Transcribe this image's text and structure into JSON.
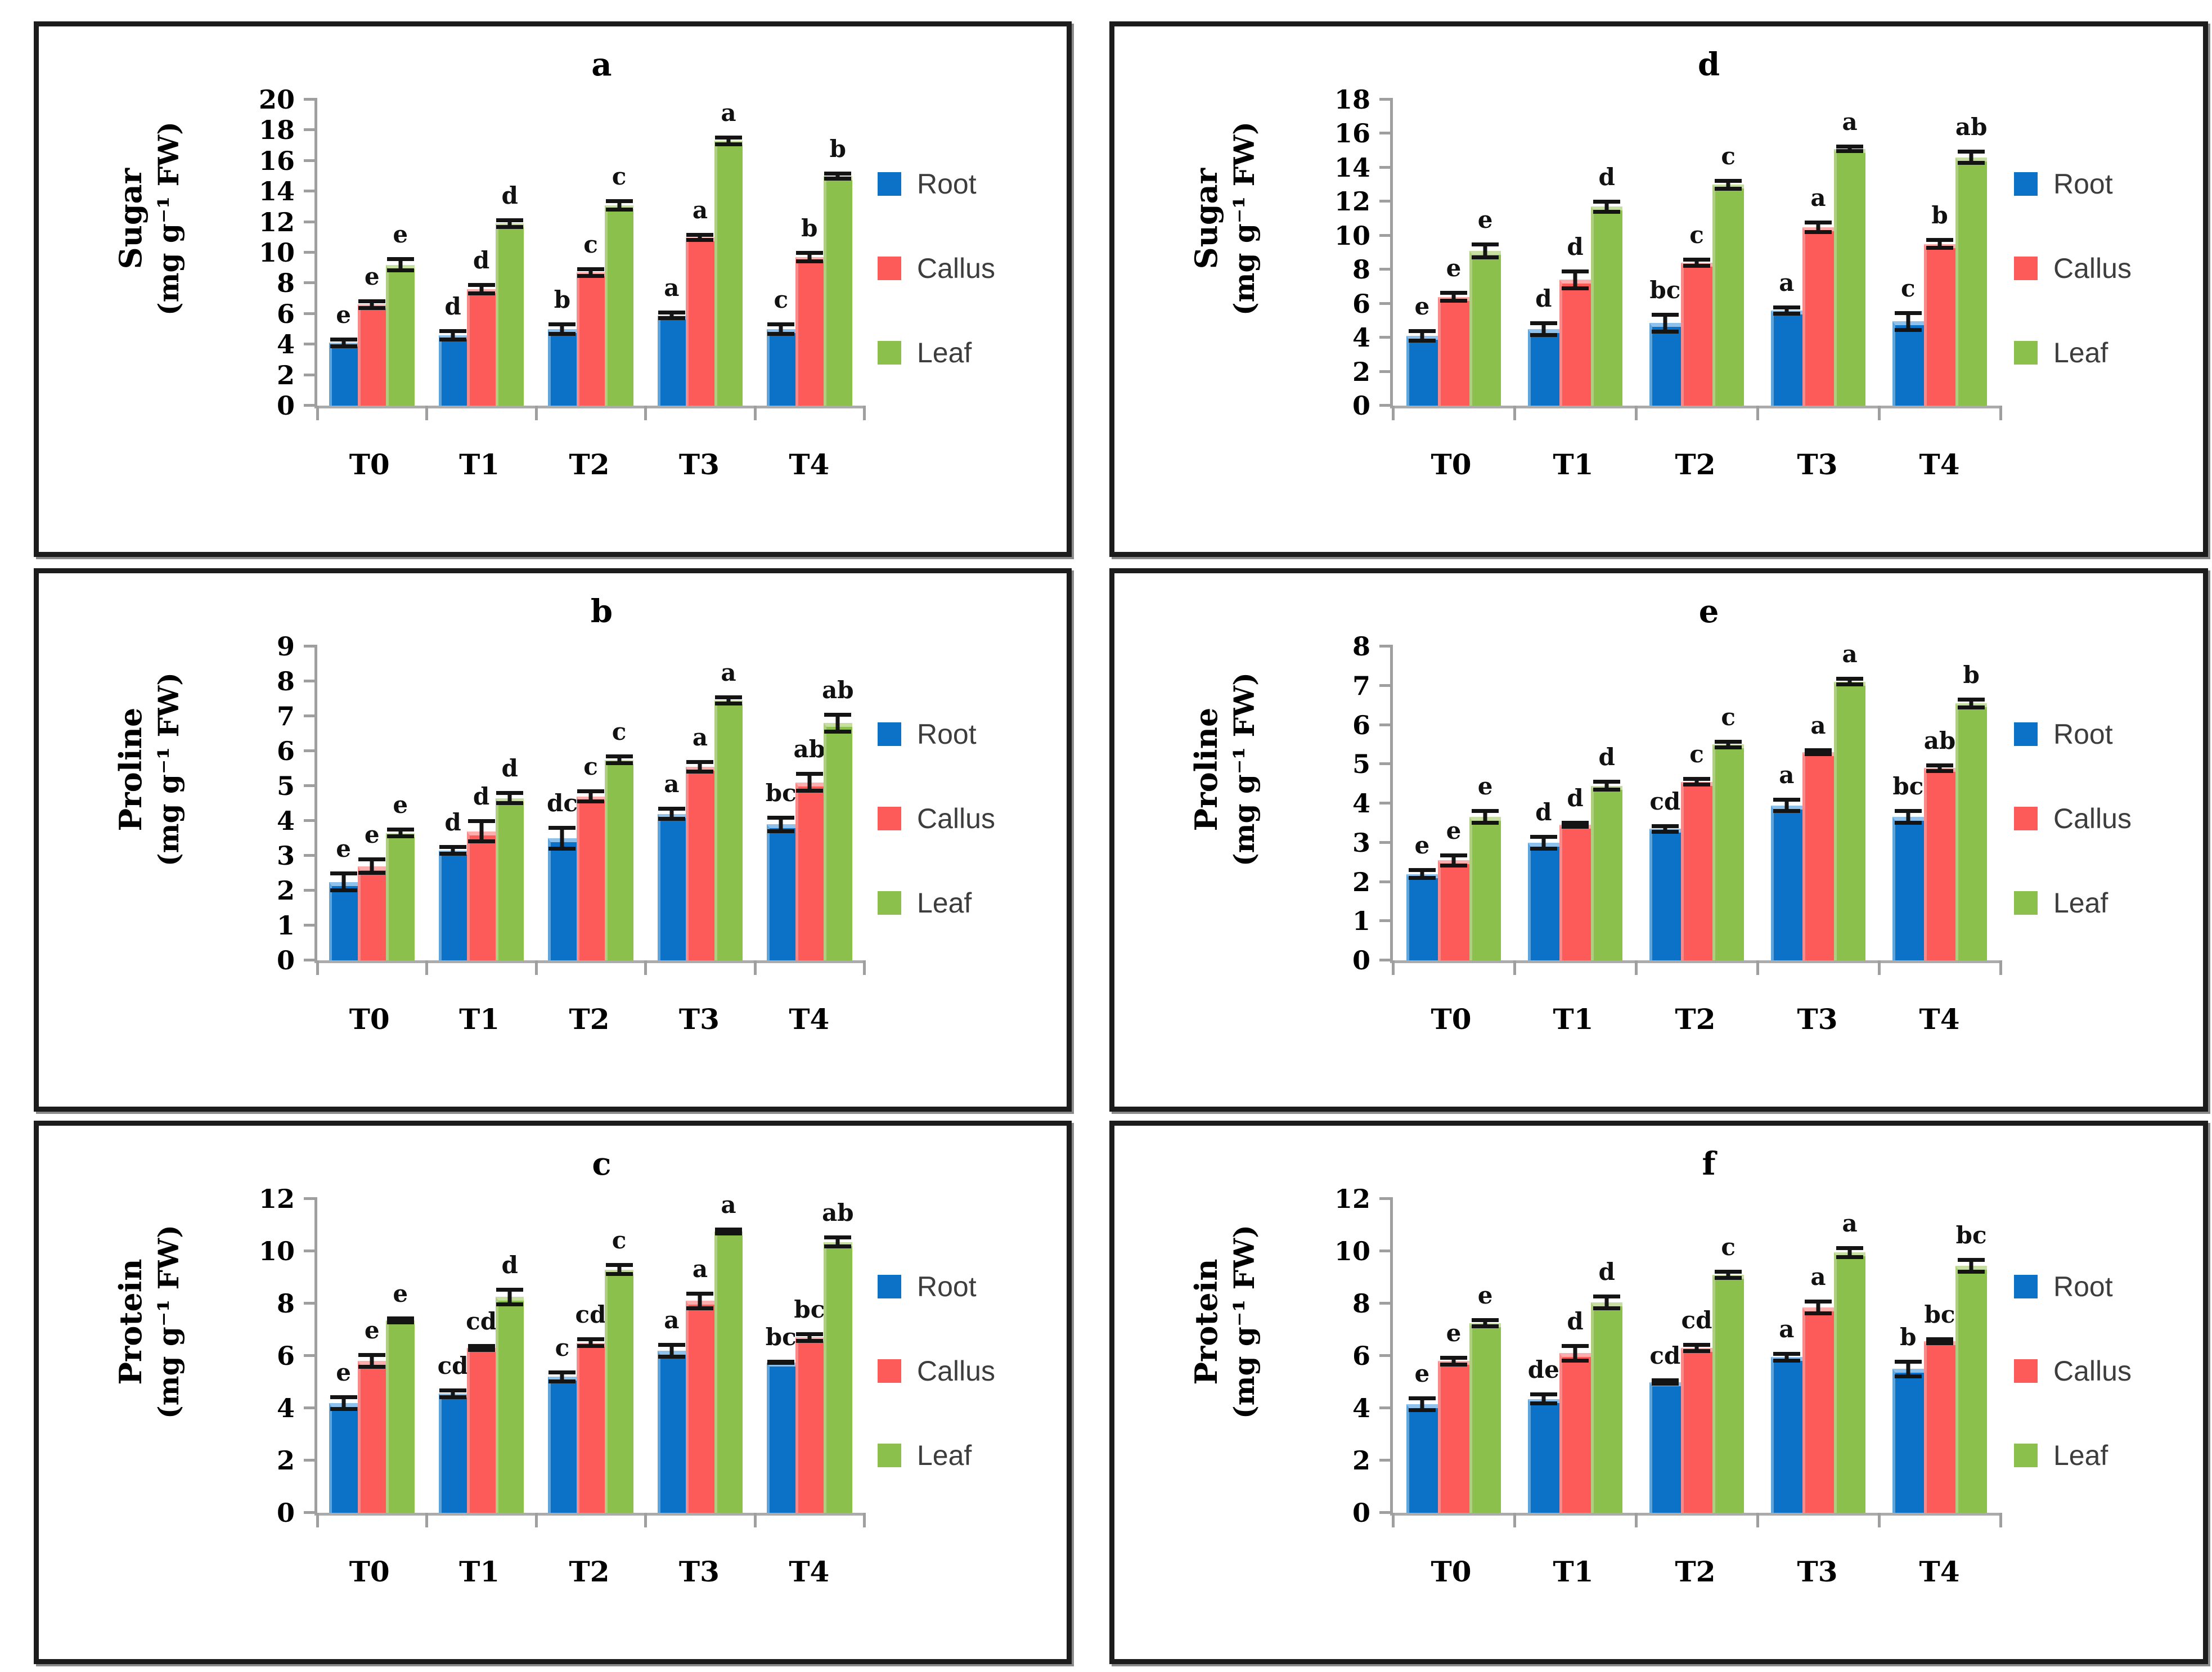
{
  "figure": {
    "background": "#ffffff",
    "panel_border_color": "#1c1c1c",
    "axis_color": "#9f9f9f",
    "error_bar_color": "#141414"
  },
  "legend": {
    "position": "right",
    "items": [
      {
        "label": "Root",
        "color": "#0C72C8"
      },
      {
        "label": "Callus",
        "color": "#FD5A5A"
      },
      {
        "label": "Leaf",
        "color": "#8CC04C"
      }
    ]
  },
  "chart_data": [
    {
      "panel": "a",
      "type": "bar",
      "title": "a",
      "ylabel": "Sugar",
      "ylabel_units": "(mg g⁻¹ FW)",
      "xlabel": "",
      "ylim": [
        0,
        20
      ],
      "ystep": 2,
      "grid": false,
      "legend_position": "right",
      "categories": [
        "T0",
        "T1",
        "T2",
        "T3",
        "T4"
      ],
      "series": [
        {
          "name": "Root",
          "color": "#0C72C8",
          "values": [
            4.1,
            4.6,
            5.0,
            5.9,
            5.0
          ],
          "errors": [
            0.35,
            0.4,
            0.45,
            0.3,
            0.45
          ],
          "letters": [
            "e",
            "d",
            "b",
            "a",
            "c"
          ]
        },
        {
          "name": "Callus",
          "color": "#FD5A5A",
          "values": [
            6.6,
            7.6,
            8.7,
            11.0,
            9.7
          ],
          "errors": [
            0.35,
            0.4,
            0.35,
            0.3,
            0.4
          ],
          "letters": [
            "e",
            "d",
            "c",
            "a",
            "b"
          ]
        },
        {
          "name": "Leaf",
          "color": "#8CC04C",
          "values": [
            9.2,
            11.9,
            13.1,
            17.3,
            15.0
          ],
          "errors": [
            0.5,
            0.35,
            0.4,
            0.35,
            0.3
          ],
          "letters": [
            "e",
            "d",
            "c",
            "a",
            "b"
          ]
        }
      ]
    },
    {
      "panel": "d",
      "type": "bar",
      "title": "d",
      "ylabel": "Sugar",
      "ylabel_units": "(mg g⁻¹ FW)",
      "xlabel": "",
      "ylim": [
        0,
        18
      ],
      "ystep": 2,
      "grid": false,
      "legend_position": "right",
      "categories": [
        "T0",
        "T1",
        "T2",
        "T3",
        "T4"
      ],
      "series": [
        {
          "name": "Root",
          "color": "#0C72C8",
          "values": [
            4.1,
            4.5,
            4.85,
            5.6,
            4.95
          ],
          "errors": [
            0.4,
            0.45,
            0.6,
            0.3,
            0.6
          ],
          "letters": [
            "e",
            "d",
            "bc",
            "a",
            "c"
          ]
        },
        {
          "name": "Callus",
          "color": "#FD5A5A",
          "values": [
            6.4,
            7.4,
            8.4,
            10.5,
            9.5
          ],
          "errors": [
            0.35,
            0.6,
            0.3,
            0.4,
            0.35
          ],
          "letters": [
            "e",
            "d",
            "c",
            "a",
            "b"
          ]
        },
        {
          "name": "Leaf",
          "color": "#8CC04C",
          "values": [
            9.1,
            11.7,
            13.0,
            15.1,
            14.6
          ],
          "errors": [
            0.5,
            0.4,
            0.35,
            0.25,
            0.45
          ],
          "letters": [
            "e",
            "d",
            "c",
            "a",
            "ab"
          ]
        }
      ]
    },
    {
      "panel": "b",
      "type": "bar",
      "title": "b",
      "ylabel": "Proline",
      "ylabel_units": "(mg g⁻¹ FW)",
      "xlabel": "",
      "ylim": [
        0,
        9
      ],
      "ystep": 1,
      "grid": false,
      "legend_position": "right",
      "categories": [
        "T0",
        "T1",
        "T2",
        "T3",
        "T4"
      ],
      "series": [
        {
          "name": "Root",
          "color": "#0C72C8",
          "values": [
            2.25,
            3.15,
            3.5,
            4.2,
            3.9
          ],
          "errors": [
            0.3,
            0.15,
            0.35,
            0.2,
            0.25
          ],
          "letters": [
            "e",
            "d",
            "dc",
            "a",
            "bc"
          ]
        },
        {
          "name": "Callus",
          "color": "#FD5A5A",
          "values": [
            2.7,
            3.7,
            4.7,
            5.55,
            5.1
          ],
          "errors": [
            0.25,
            0.35,
            0.2,
            0.2,
            0.3
          ],
          "letters": [
            "e",
            "d",
            "c",
            "a",
            "ab"
          ]
        },
        {
          "name": "Leaf",
          "color": "#8CC04C",
          "values": [
            3.65,
            4.65,
            5.75,
            7.45,
            6.8
          ],
          "errors": [
            0.15,
            0.2,
            0.15,
            0.15,
            0.3
          ],
          "letters": [
            "e",
            "d",
            "c",
            "a",
            "ab"
          ]
        }
      ]
    },
    {
      "panel": "e",
      "type": "bar",
      "title": "e",
      "ylabel": "Proline",
      "ylabel_units": "(mg g⁻¹ FW)",
      "xlabel": "",
      "ylim": [
        0,
        8
      ],
      "ystep": 1,
      "grid": false,
      "legend_position": "right",
      "categories": [
        "T0",
        "T1",
        "T2",
        "T3",
        "T4"
      ],
      "series": [
        {
          "name": "Root",
          "color": "#0C72C8",
          "values": [
            2.2,
            3.0,
            3.35,
            3.95,
            3.65
          ],
          "errors": [
            0.15,
            0.2,
            0.12,
            0.2,
            0.2
          ],
          "letters": [
            "e",
            "d",
            "cd",
            "a",
            "bc"
          ]
        },
        {
          "name": "Callus",
          "color": "#FD5A5A",
          "values": [
            2.55,
            3.45,
            4.55,
            5.3,
            4.9
          ],
          "errors": [
            0.18,
            0.1,
            0.12,
            0.1,
            0.12
          ],
          "letters": [
            "e",
            "d",
            "c",
            "a",
            "ab"
          ]
        },
        {
          "name": "Leaf",
          "color": "#8CC04C",
          "values": [
            3.65,
            4.45,
            5.5,
            7.1,
            6.55
          ],
          "errors": [
            0.2,
            0.15,
            0.12,
            0.12,
            0.15
          ],
          "letters": [
            "e",
            "d",
            "c",
            "a",
            "b"
          ]
        }
      ]
    },
    {
      "panel": "c",
      "type": "bar",
      "title": "c",
      "ylabel": "Protein",
      "ylabel_units": "(mg g⁻¹ FW)",
      "xlabel": "",
      "ylim": [
        0,
        12
      ],
      "ystep": 2,
      "grid": false,
      "legend_position": "right",
      "categories": [
        "T0",
        "T1",
        "T2",
        "T3",
        "T4"
      ],
      "series": [
        {
          "name": "Root",
          "color": "#0C72C8",
          "values": [
            4.2,
            4.55,
            5.2,
            6.2,
            5.75
          ],
          "errors": [
            0.3,
            0.2,
            0.25,
            0.3,
            0.1
          ],
          "letters": [
            "e",
            "cd",
            "c",
            "a",
            "bc"
          ]
        },
        {
          "name": "Callus",
          "color": "#FD5A5A",
          "values": [
            5.8,
            6.3,
            6.5,
            8.1,
            6.7
          ],
          "errors": [
            0.3,
            0.15,
            0.2,
            0.35,
            0.2
          ],
          "letters": [
            "e",
            "cd",
            "cd",
            "a",
            "bc"
          ]
        },
        {
          "name": "Leaf",
          "color": "#8CC04C",
          "values": [
            7.35,
            8.25,
            9.3,
            10.75,
            10.35
          ],
          "errors": [
            0.15,
            0.35,
            0.25,
            0.15,
            0.25
          ],
          "letters": [
            "e",
            "d",
            "c",
            "a",
            "ab"
          ]
        }
      ]
    },
    {
      "panel": "f",
      "type": "bar",
      "title": "f",
      "ylabel": "Protein",
      "ylabel_units": "(mg g⁻¹ FW)",
      "xlabel": "",
      "ylim": [
        0,
        12
      ],
      "ystep": 2,
      "grid": false,
      "legend_position": "right",
      "categories": [
        "T0",
        "T1",
        "T2",
        "T3",
        "T4"
      ],
      "series": [
        {
          "name": "Root",
          "color": "#0C72C8",
          "values": [
            4.15,
            4.35,
            5.0,
            5.95,
            5.5
          ],
          "errors": [
            0.3,
            0.25,
            0.15,
            0.2,
            0.35
          ],
          "letters": [
            "e",
            "de",
            "cd",
            "a",
            "b"
          ]
        },
        {
          "name": "Callus",
          "color": "#FD5A5A",
          "values": [
            5.8,
            6.1,
            6.3,
            7.85,
            6.55
          ],
          "errors": [
            0.2,
            0.35,
            0.2,
            0.3,
            0.15
          ],
          "letters": [
            "e",
            "d",
            "cd",
            "a",
            "bc"
          ]
        },
        {
          "name": "Leaf",
          "color": "#8CC04C",
          "values": [
            7.25,
            8.05,
            9.1,
            9.95,
            9.45
          ],
          "errors": [
            0.2,
            0.3,
            0.2,
            0.25,
            0.3
          ],
          "letters": [
            "e",
            "d",
            "c",
            "a",
            "bc"
          ]
        }
      ]
    }
  ]
}
